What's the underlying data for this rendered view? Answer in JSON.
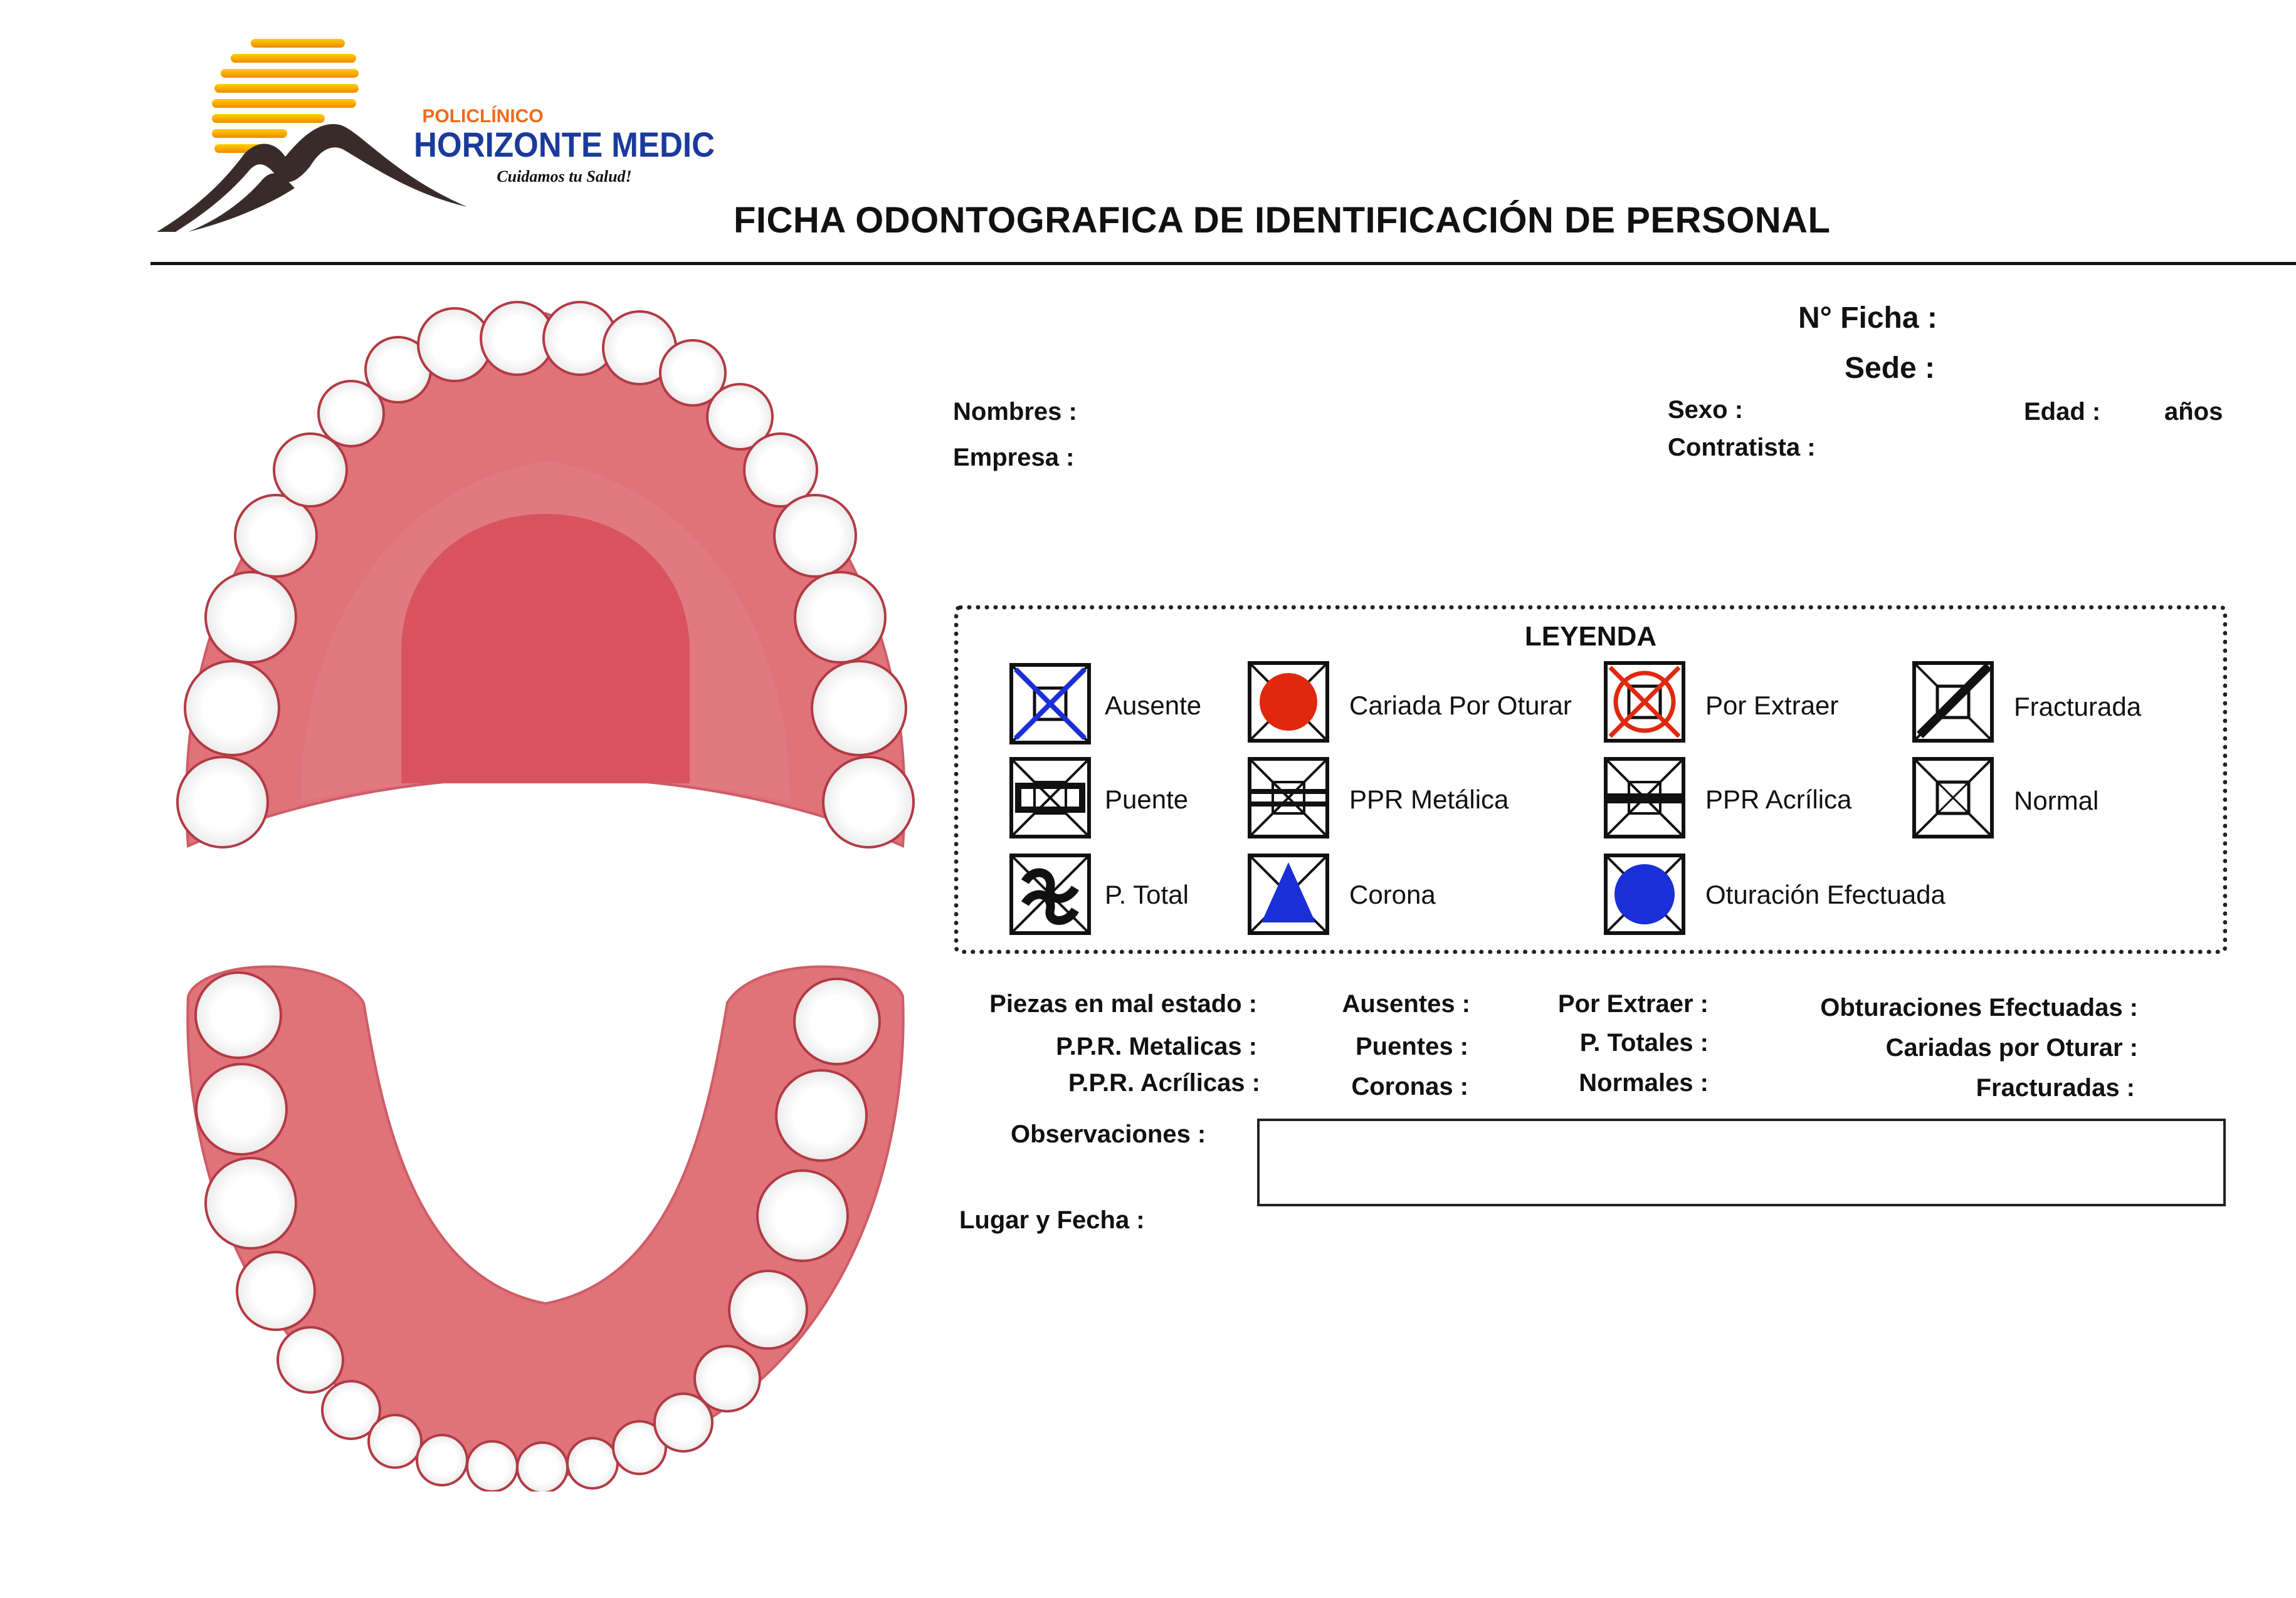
{
  "header": {
    "clinic_top": "POLICLÍNICO",
    "clinic_name": "HORIZONTE MEDIC",
    "slogan": "Cuidamos tu Salud!",
    "title": "FICHA ODONTOGRAFICA DE IDENTIFICACIÓN DE PERSONAL"
  },
  "form": {
    "ficha_label": "N° Ficha :",
    "sede_label": "Sede :",
    "nombres_label": "Nombres :",
    "empresa_label": "Empresa :",
    "sexo_label": "Sexo :",
    "contratista_label": "Contratista :",
    "edad_label": "Edad :",
    "anos_label": "años"
  },
  "legend": {
    "title": "LEYENDA",
    "items": [
      {
        "label": "Ausente",
        "icon": "ausente-icon"
      },
      {
        "label": "Cariada Por Oturar",
        "icon": "cariada-icon"
      },
      {
        "label": "Por Extraer",
        "icon": "por-extraer-icon"
      },
      {
        "label": "Fracturada",
        "icon": "fracturada-icon"
      },
      {
        "label": "Puente",
        "icon": "puente-icon"
      },
      {
        "label": "PPR  Metálica",
        "icon": "ppr-metalica-icon"
      },
      {
        "label": "PPR  Acrílica",
        "icon": "ppr-acrilica-icon"
      },
      {
        "label": "Normal",
        "icon": "normal-icon"
      },
      {
        "label": "P. Total",
        "icon": "p-total-icon"
      },
      {
        "label": "Corona",
        "icon": "corona-icon"
      },
      {
        "label": "Oturación Efectuada",
        "icon": "oturacion-icon"
      }
    ],
    "colors": {
      "blue": "#1a2fd6",
      "red": "#e0280f",
      "black": "#111111"
    }
  },
  "summary": {
    "piezas_mal_estado": "Piezas en mal estado :",
    "ppr_metalicas": "P.P.R. Metalicas :",
    "ppr_acrilicas": "P.P.R. Acrílicas :",
    "ausentes": "Ausentes :",
    "puentes": "Puentes :",
    "coronas": "Coronas :",
    "por_extraer": "Por Extraer :",
    "p_totales": "P. Totales :",
    "normales": "Normales :",
    "obturaciones_efectuadas": "Obturaciones Efectuadas :",
    "cariadas_por_oturar": "Cariadas por Oturar :",
    "fracturadas": "Fracturadas :",
    "observaciones": "Observaciones :",
    "lugar_fecha": "Lugar y Fecha :"
  }
}
